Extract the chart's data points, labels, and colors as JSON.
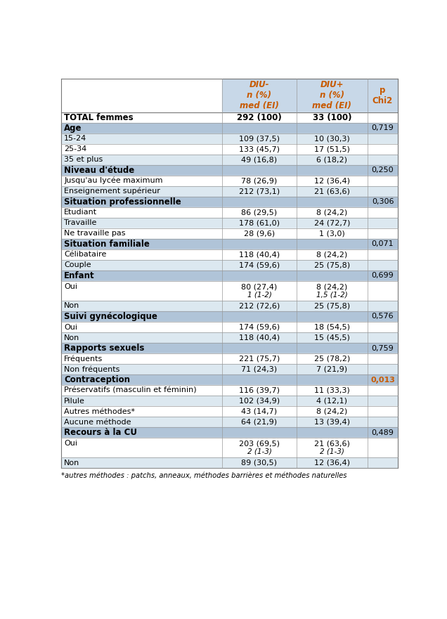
{
  "header_bg": "#c8d8e8",
  "section_bg": "#b0c4d8",
  "row_bg_alt": "#dce8f0",
  "row_bg_white": "#ffffff",
  "orange_color": "#c85a00",
  "footer_text": "*autres méthodes : patchs, anneaux, méthodes barrières et méthodes naturelles",
  "rows": [
    {
      "type": "total",
      "label": "TOTAL femmes",
      "col1": "292 (100)",
      "col2": "33 (100)",
      "col3": "",
      "bold3": false,
      "bg": "#ffffff"
    },
    {
      "type": "section",
      "label": "Age",
      "col1": "",
      "col2": "",
      "col3": "0,719",
      "bold3": false,
      "bg": "#b0c4d8"
    },
    {
      "type": "data",
      "label": "15-24",
      "col1": "109 (37,5)",
      "col2": "10 (30,3)",
      "col3": "",
      "bold3": false,
      "bg": "#dce8f0"
    },
    {
      "type": "data",
      "label": "25-34",
      "col1": "133 (45,7)",
      "col2": "17 (51,5)",
      "col3": "",
      "bold3": false,
      "bg": "#ffffff"
    },
    {
      "type": "data",
      "label": "35 et plus",
      "col1": "49 (16,8)",
      "col2": "6 (18,2)",
      "col3": "",
      "bold3": false,
      "bg": "#dce8f0"
    },
    {
      "type": "section",
      "label": "Niveau d'étude",
      "col1": "",
      "col2": "",
      "col3": "0,250",
      "bold3": false,
      "bg": "#b0c4d8"
    },
    {
      "type": "data",
      "label": "Jusqu'au lycée maximum",
      "col1": "78 (26,9)",
      "col2": "12 (36,4)",
      "col3": "",
      "bold3": false,
      "bg": "#ffffff"
    },
    {
      "type": "data",
      "label": "Enseignement supérieur",
      "col1": "212 (73,1)",
      "col2": "21 (63,6)",
      "col3": "",
      "bold3": false,
      "bg": "#dce8f0"
    },
    {
      "type": "section",
      "label": "Situation professionnelle",
      "col1": "",
      "col2": "",
      "col3": "0,306",
      "bold3": false,
      "bg": "#b0c4d8"
    },
    {
      "type": "data",
      "label": "Etudiant",
      "col1": "86 (29,5)",
      "col2": "8 (24,2)",
      "col3": "",
      "bold3": false,
      "bg": "#ffffff"
    },
    {
      "type": "data",
      "label": "Travaille",
      "col1": "178 (61,0)",
      "col2": "24 (72,7)",
      "col3": "",
      "bold3": false,
      "bg": "#dce8f0"
    },
    {
      "type": "data",
      "label": "Ne travaille pas",
      "col1": "28 (9,6)",
      "col2": "1 (3,0)",
      "col3": "",
      "bold3": false,
      "bg": "#ffffff"
    },
    {
      "type": "section",
      "label": "Situation familiale",
      "col1": "",
      "col2": "",
      "col3": "0,071",
      "bold3": false,
      "bg": "#b0c4d8"
    },
    {
      "type": "data",
      "label": "Célibataire",
      "col1": "118 (40,4)",
      "col2": "8 (24,2)",
      "col3": "",
      "bold3": false,
      "bg": "#ffffff"
    },
    {
      "type": "data",
      "label": "Couple",
      "col1": "174 (59,6)",
      "col2": "25 (75,8)",
      "col3": "",
      "bold3": false,
      "bg": "#dce8f0"
    },
    {
      "type": "section",
      "label": "Enfant",
      "col1": "",
      "col2": "",
      "col3": "0,699",
      "bold3": false,
      "bg": "#b0c4d8"
    },
    {
      "type": "data2",
      "label": "Oui",
      "col1": "80 (27,4)",
      "col2": "8 (24,2)",
      "col1b": "1 (1-2)",
      "col2b": "1,5 (1-2)",
      "col3": "",
      "bold3": false,
      "bg": "#ffffff"
    },
    {
      "type": "data",
      "label": "Non",
      "col1": "212 (72,6)",
      "col2": "25 (75,8)",
      "col3": "",
      "bold3": false,
      "bg": "#dce8f0"
    },
    {
      "type": "section",
      "label": "Suivi gynécologique",
      "col1": "",
      "col2": "",
      "col3": "0,576",
      "bold3": false,
      "bg": "#b0c4d8"
    },
    {
      "type": "data",
      "label": "Oui",
      "col1": "174 (59,6)",
      "col2": "18 (54,5)",
      "col3": "",
      "bold3": false,
      "bg": "#ffffff"
    },
    {
      "type": "data",
      "label": "Non",
      "col1": "118 (40,4)",
      "col2": "15 (45,5)",
      "col3": "",
      "bold3": false,
      "bg": "#dce8f0"
    },
    {
      "type": "section",
      "label": "Rapports sexuels",
      "col1": "",
      "col2": "",
      "col3": "0,759",
      "bold3": false,
      "bg": "#b0c4d8"
    },
    {
      "type": "data",
      "label": "Fréquents",
      "col1": "221 (75,7)",
      "col2": "25 (78,2)",
      "col3": "",
      "bold3": false,
      "bg": "#ffffff"
    },
    {
      "type": "data",
      "label": "Non fréquents",
      "col1": "71 (24,3)",
      "col2": "7 (21,9)",
      "col3": "",
      "bold3": false,
      "bg": "#dce8f0"
    },
    {
      "type": "section",
      "label": "Contraception",
      "col1": "",
      "col2": "",
      "col3": "0,013",
      "bold3": true,
      "bg": "#b0c4d8"
    },
    {
      "type": "data",
      "label": "Préservatifs (masculin et féminin)",
      "col1": "116 (39,7)",
      "col2": "11 (33,3)",
      "col3": "",
      "bold3": false,
      "bg": "#ffffff"
    },
    {
      "type": "data",
      "label": "Pilule",
      "col1": "102 (34,9)",
      "col2": "4 (12,1)",
      "col3": "",
      "bold3": false,
      "bg": "#dce8f0"
    },
    {
      "type": "data",
      "label": "Autres méthodes*",
      "col1": "43 (14,7)",
      "col2": "8 (24,2)",
      "col3": "",
      "bold3": false,
      "bg": "#ffffff"
    },
    {
      "type": "data",
      "label": "Aucune méthode",
      "col1": "64 (21,9)",
      "col2": "13 (39,4)",
      "col3": "",
      "bold3": false,
      "bg": "#dce8f0"
    },
    {
      "type": "section",
      "label": "Recours à la CU",
      "col1": "",
      "col2": "",
      "col3": "0,489",
      "bold3": false,
      "bg": "#b0c4d8"
    },
    {
      "type": "data2",
      "label": "Oui",
      "col1": "203 (69,5)",
      "col2": "21 (63,6)",
      "col1b": "2 (1-3)",
      "col2b": "2 (1-3)",
      "col3": "",
      "bold3": false,
      "bg": "#ffffff"
    },
    {
      "type": "data",
      "label": "Non",
      "col1": "89 (30,5)",
      "col2": "12 (36,4)",
      "col3": "",
      "bold3": false,
      "bg": "#dce8f0"
    }
  ]
}
